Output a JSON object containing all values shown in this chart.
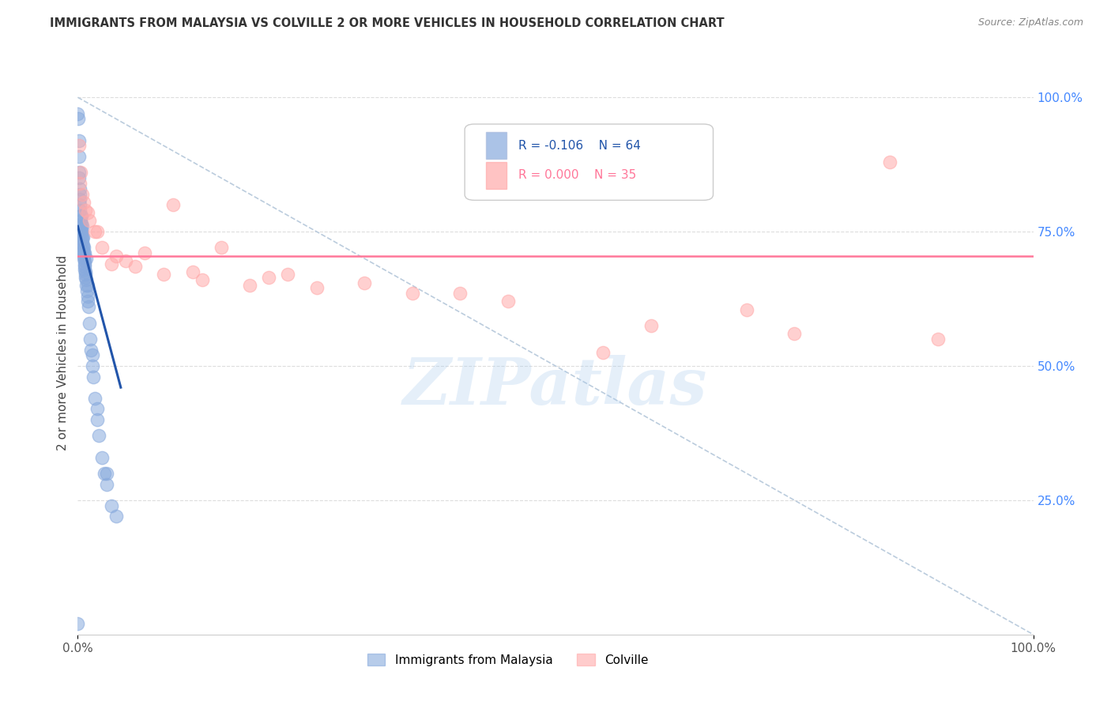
{
  "title": "IMMIGRANTS FROM MALAYSIA VS COLVILLE 2 OR MORE VEHICLES IN HOUSEHOLD CORRELATION CHART",
  "source_text": "Source: ZipAtlas.com",
  "ylabel_left": "2 or more Vehicles in Household",
  "legend_blue_label": "Immigrants from Malaysia",
  "legend_pink_label": "Colville",
  "legend_blue_r": "R = -0.106",
  "legend_blue_n": "N = 64",
  "legend_pink_r": "R = 0.000",
  "legend_pink_n": "N = 35",
  "blue_color": "#88AADD",
  "pink_color": "#FFAAAA",
  "blue_line_color": "#2255AA",
  "pink_line_color": "#FF7799",
  "diag_line_color": "#BBCCDD",
  "watermark_text": "ZIPatlas",
  "blue_points_x": [
    0.0,
    0.05,
    0.1,
    0.12,
    0.15,
    0.18,
    0.2,
    0.22,
    0.25,
    0.28,
    0.3,
    0.32,
    0.35,
    0.38,
    0.4,
    0.42,
    0.45,
    0.48,
    0.5,
    0.52,
    0.55,
    0.58,
    0.6,
    0.62,
    0.65,
    0.68,
    0.7,
    0.72,
    0.75,
    0.78,
    0.8,
    0.82,
    0.85,
    0.9,
    0.95,
    1.0,
    1.05,
    1.1,
    1.2,
    1.3,
    1.4,
    1.5,
    1.6,
    1.8,
    2.0,
    2.2,
    2.5,
    2.8,
    3.0,
    3.5,
    0.15,
    0.25,
    0.35,
    0.45,
    0.55,
    0.65,
    0.75,
    0.85,
    1.0,
    1.5,
    2.0,
    3.0,
    4.0,
    0.0
  ],
  "blue_points_y": [
    97.0,
    96.0,
    92.0,
    89.0,
    85.0,
    82.0,
    83.0,
    80.0,
    79.0,
    78.0,
    77.0,
    76.0,
    76.5,
    75.5,
    75.0,
    74.5,
    74.0,
    73.5,
    73.0,
    72.5,
    72.0,
    71.5,
    71.0,
    70.5,
    70.0,
    69.5,
    69.0,
    68.5,
    68.0,
    67.5,
    67.0,
    66.5,
    66.0,
    65.0,
    64.0,
    63.0,
    62.0,
    61.0,
    58.0,
    55.0,
    53.0,
    50.0,
    48.0,
    44.0,
    40.0,
    37.0,
    33.0,
    30.0,
    28.0,
    24.0,
    86.0,
    81.0,
    78.0,
    76.0,
    74.0,
    72.0,
    71.0,
    70.0,
    65.0,
    52.0,
    42.0,
    30.0,
    22.0,
    2.0
  ],
  "pink_points_x": [
    0.1,
    0.3,
    0.5,
    0.8,
    1.2,
    1.8,
    2.5,
    3.5,
    5.0,
    7.0,
    10.0,
    15.0,
    22.0,
    30.0,
    40.0,
    55.0,
    70.0,
    85.0,
    0.2,
    0.6,
    1.0,
    2.0,
    4.0,
    6.0,
    9.0,
    13.0,
    18.0,
    25.0,
    35.0,
    45.0,
    60.0,
    75.0,
    90.0,
    12.0,
    20.0
  ],
  "pink_points_y": [
    91.0,
    86.0,
    82.0,
    79.0,
    77.0,
    75.0,
    72.0,
    69.0,
    69.5,
    71.0,
    80.0,
    72.0,
    67.0,
    65.5,
    63.5,
    52.5,
    60.5,
    88.0,
    84.0,
    80.5,
    78.5,
    75.0,
    70.5,
    68.5,
    67.0,
    66.0,
    65.0,
    64.5,
    63.5,
    62.0,
    57.5,
    56.0,
    55.0,
    67.5,
    66.5
  ],
  "blue_trend_x": [
    0.0,
    4.5
  ],
  "blue_trend_y": [
    76.0,
    46.0
  ],
  "pink_trend_y": 70.5,
  "diag_line_x": [
    0.0,
    100.0
  ],
  "diag_line_y": [
    100.0,
    0.0
  ],
  "xlim": [
    0,
    100
  ],
  "ylim": [
    0,
    105
  ],
  "ytick_vals": [
    25,
    50,
    75,
    100
  ],
  "xtick_vals": [
    0,
    100
  ],
  "xtick_labels": [
    "0.0%",
    "100.0%"
  ],
  "ytick_labels": [
    "25.0%",
    "50.0%",
    "75.0%",
    "100.0%"
  ]
}
